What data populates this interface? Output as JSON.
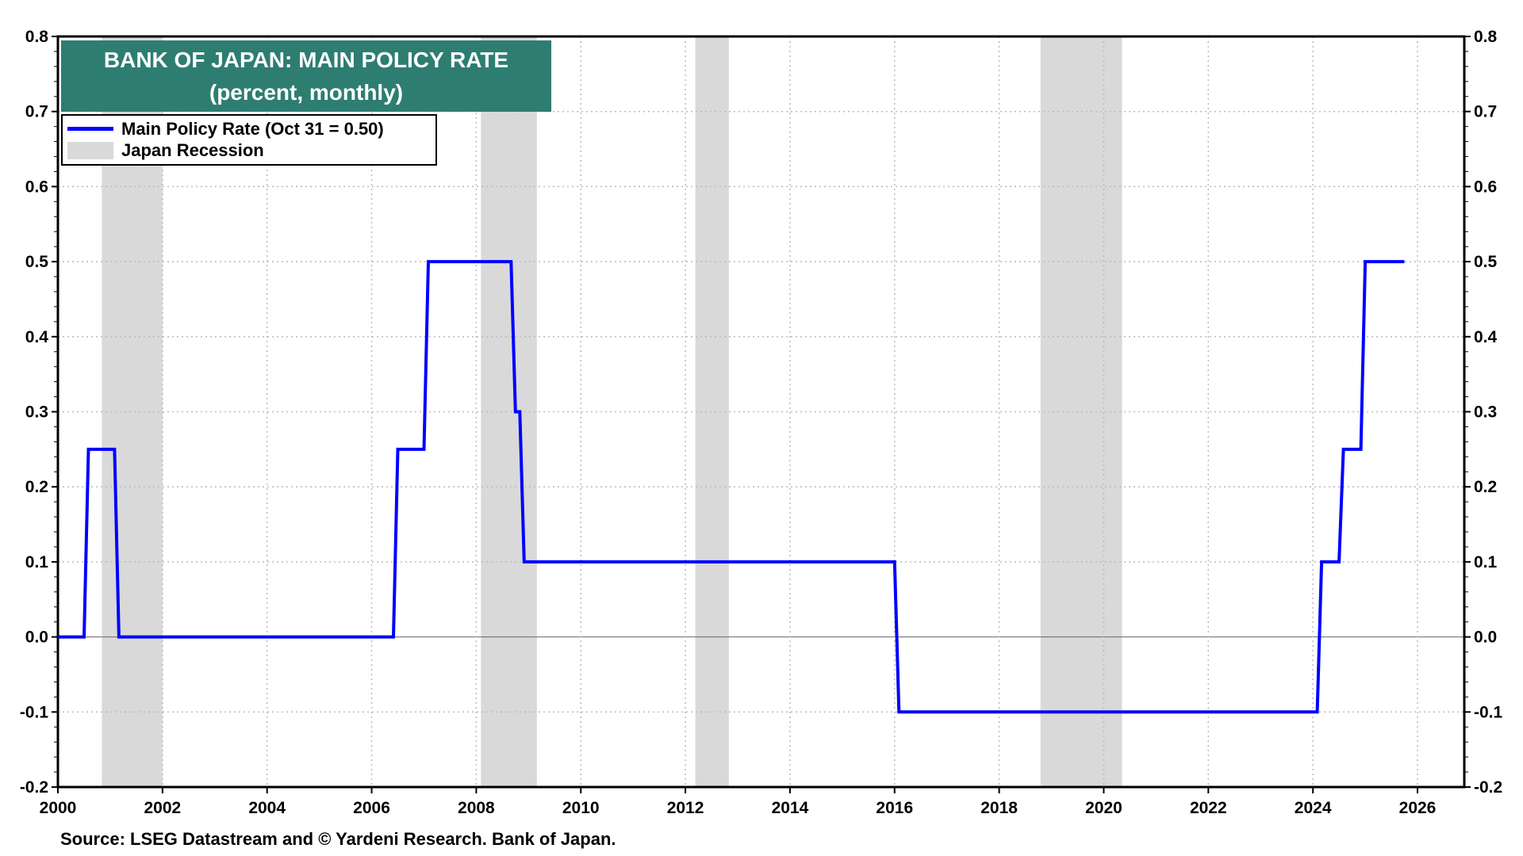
{
  "chart_data": {
    "type": "line",
    "title": "BANK OF JAPAN: MAIN POLICY RATE",
    "subtitle": "(percent, monthly)",
    "xlabel": "",
    "ylabel": "",
    "xlim": [
      2000,
      2026.8
    ],
    "ylim": [
      -0.2,
      0.8
    ],
    "grid": true,
    "legend_placement": "top-left",
    "x_ticks": [
      "2000",
      "2002",
      "2004",
      "2006",
      "2008",
      "2010",
      "2012",
      "2014",
      "2016",
      "2018",
      "2020",
      "2022",
      "2024",
      "2026"
    ],
    "y_ticks": [
      "0.8",
      "0.7",
      "0.6",
      "0.5",
      "0.4",
      "0.3",
      "0.2",
      "0.1",
      "0.0",
      "-0.1",
      "-0.2"
    ],
    "y_tick_values": [
      0.8,
      0.7,
      0.6,
      0.5,
      0.4,
      0.3,
      0.2,
      0.1,
      0.0,
      -0.1,
      -0.2
    ],
    "series": [
      {
        "name": "Main Policy Rate (Oct 31 = 0.50)",
        "color": "#0000ff",
        "start": "2000-01",
        "end": "2025-10",
        "rate_changes": [
          {
            "month": "2000-01",
            "value": 0.0
          },
          {
            "month": "2000-08",
            "value": 0.25
          },
          {
            "month": "2001-03",
            "value": 0.0
          },
          {
            "month": "2006-07",
            "value": 0.25
          },
          {
            "month": "2007-02",
            "value": 0.5
          },
          {
            "month": "2008-10",
            "value": 0.3
          },
          {
            "month": "2008-12",
            "value": 0.1
          },
          {
            "month": "2016-02",
            "value": -0.1
          },
          {
            "month": "2024-03",
            "value": 0.1
          },
          {
            "month": "2024-08",
            "value": 0.25
          },
          {
            "month": "2025-01",
            "value": 0.5
          }
        ]
      }
    ],
    "shaded_regions": {
      "name": "Japan Recession",
      "color": "#d9d9d9",
      "periods": [
        [
          2000.84,
          2002.0
        ],
        [
          2008.09,
          2009.16
        ],
        [
          2012.19,
          2012.83
        ],
        [
          2018.79,
          2020.35
        ]
      ]
    },
    "source": "Source: LSEG Datastream and © Yardeni Research. Bank of Japan."
  }
}
